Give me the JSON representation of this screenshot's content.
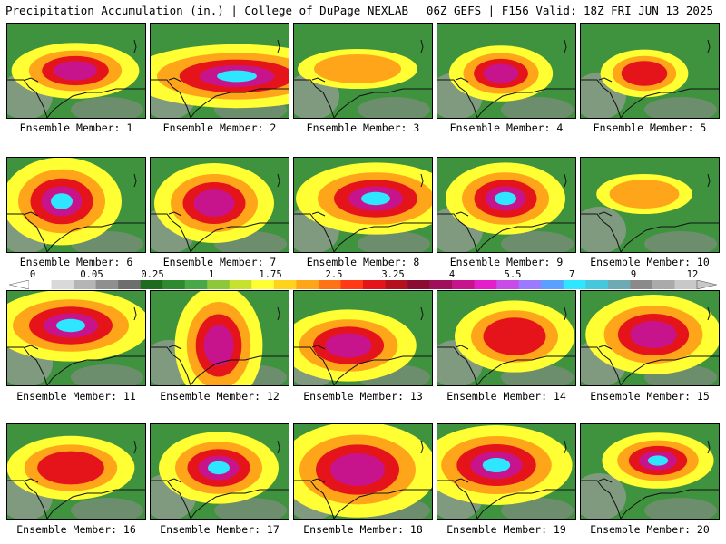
{
  "header": {
    "title_left": "Precipitation Accumulation (in.) | College of DuPage NEXLAB",
    "title_right": "06Z GEFS | F156 Valid: 18Z FRI JUN 13 2025"
  },
  "member_label_prefix": "Ensemble Member: ",
  "members": [
    {
      "id": "1",
      "label": "Ensemble Member: 1"
    },
    {
      "id": "2",
      "label": "Ensemble Member: 2"
    },
    {
      "id": "3",
      "label": "Ensemble Member: 3"
    },
    {
      "id": "4",
      "label": "Ensemble Member: 4"
    },
    {
      "id": "5",
      "label": "Ensemble Member: 5"
    },
    {
      "id": "6",
      "label": "Ensemble Member: 6"
    },
    {
      "id": "7",
      "label": "Ensemble Member: 7"
    },
    {
      "id": "8",
      "label": "Ensemble Member: 8"
    },
    {
      "id": "9",
      "label": "Ensemble Member: 9"
    },
    {
      "id": "10",
      "label": "Ensemble Member: 10"
    },
    {
      "id": "11",
      "label": "Ensemble Member: 11"
    },
    {
      "id": "12",
      "label": "Ensemble Member: 12"
    },
    {
      "id": "13",
      "label": "Ensemble Member: 13"
    },
    {
      "id": "14",
      "label": "Ensemble Member: 14"
    },
    {
      "id": "15",
      "label": "Ensemble Member: 15"
    },
    {
      "id": "16",
      "label": "Ensemble Member: 16"
    },
    {
      "id": "17",
      "label": "Ensemble Member: 17"
    },
    {
      "id": "18",
      "label": "Ensemble Member: 18"
    },
    {
      "id": "19",
      "label": "Ensemble Member: 19"
    },
    {
      "id": "20",
      "label": "Ensemble Member: 20"
    }
  ],
  "colorbar": {
    "tick_labels": [
      "0",
      "0.05",
      "0.25",
      "1",
      "1.75",
      "2.5",
      "3.25",
      "4",
      "5.5",
      "7",
      "9",
      "12"
    ],
    "colors": [
      "#ffffff",
      "#d9d9d9",
      "#b5b5b5",
      "#8f8f8f",
      "#6e6e6e",
      "#1e6b1e",
      "#2f8a2f",
      "#48a848",
      "#8cc83a",
      "#c6e22e",
      "#ffff33",
      "#ffd21e",
      "#ffa51a",
      "#ff7316",
      "#ff3a14",
      "#e4141a",
      "#b5101e",
      "#8a0c32",
      "#a0105a",
      "#c8148c",
      "#e41ec8",
      "#c84ce8",
      "#9b7aff",
      "#5aa0ff",
      "#2ee6ff",
      "#46c8dc",
      "#6eaab4",
      "#8a8a8a",
      "#aaaaaa",
      "#c8c8c8"
    ]
  }
}
